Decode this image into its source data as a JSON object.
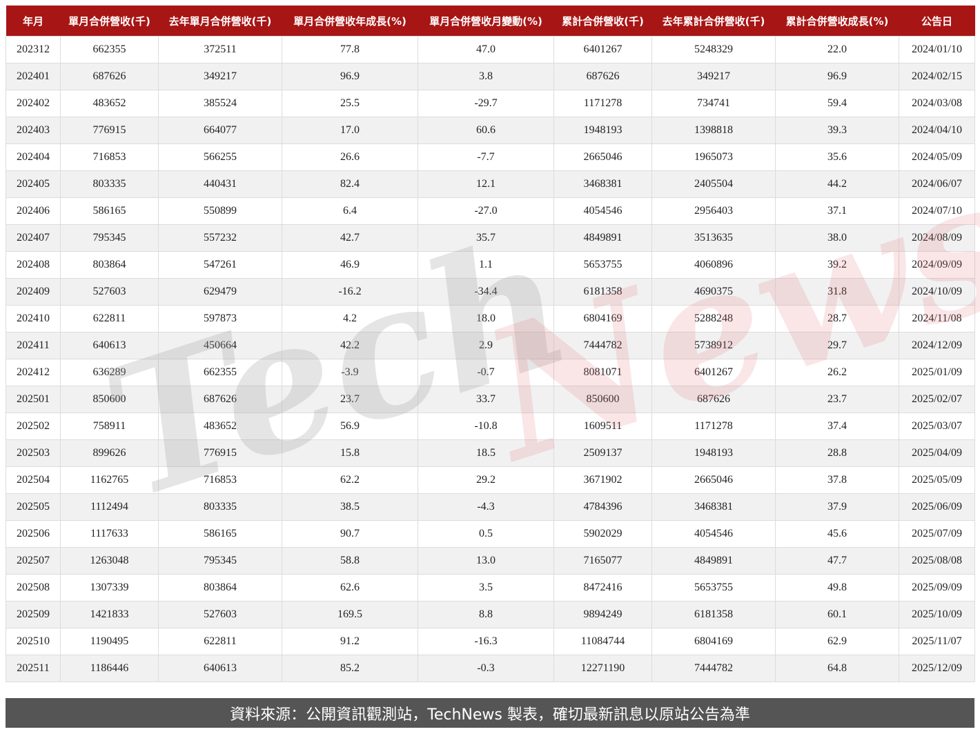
{
  "table": {
    "headers": [
      "年月",
      "單月合併營收(千)",
      "去年單月合併營收(千)",
      "單月合併營收年成長(%)",
      "單月合併營收月變動(%)",
      "累計合併營收(千)",
      "去年累計合併營收(千)",
      "累計合併營收成長(%)",
      "公告日"
    ],
    "rows": [
      [
        "202312",
        "662355",
        "372511",
        "77.8",
        "47.0",
        "6401267",
        "5248329",
        "22.0",
        "2024/01/10"
      ],
      [
        "202401",
        "687626",
        "349217",
        "96.9",
        "3.8",
        "687626",
        "349217",
        "96.9",
        "2024/02/15"
      ],
      [
        "202402",
        "483652",
        "385524",
        "25.5",
        "-29.7",
        "1171278",
        "734741",
        "59.4",
        "2024/03/08"
      ],
      [
        "202403",
        "776915",
        "664077",
        "17.0",
        "60.6",
        "1948193",
        "1398818",
        "39.3",
        "2024/04/10"
      ],
      [
        "202404",
        "716853",
        "566255",
        "26.6",
        "-7.7",
        "2665046",
        "1965073",
        "35.6",
        "2024/05/09"
      ],
      [
        "202405",
        "803335",
        "440431",
        "82.4",
        "12.1",
        "3468381",
        "2405504",
        "44.2",
        "2024/06/07"
      ],
      [
        "202406",
        "586165",
        "550899",
        "6.4",
        "-27.0",
        "4054546",
        "2956403",
        "37.1",
        "2024/07/10"
      ],
      [
        "202407",
        "795345",
        "557232",
        "42.7",
        "35.7",
        "4849891",
        "3513635",
        "38.0",
        "2024/08/09"
      ],
      [
        "202408",
        "803864",
        "547261",
        "46.9",
        "1.1",
        "5653755",
        "4060896",
        "39.2",
        "2024/09/09"
      ],
      [
        "202409",
        "527603",
        "629479",
        "-16.2",
        "-34.4",
        "6181358",
        "4690375",
        "31.8",
        "2024/10/09"
      ],
      [
        "202410",
        "622811",
        "597873",
        "4.2",
        "18.0",
        "6804169",
        "5288248",
        "28.7",
        "2024/11/08"
      ],
      [
        "202411",
        "640613",
        "450664",
        "42.2",
        "2.9",
        "7444782",
        "5738912",
        "29.7",
        "2024/12/09"
      ],
      [
        "202412",
        "636289",
        "662355",
        "-3.9",
        "-0.7",
        "8081071",
        "6401267",
        "26.2",
        "2025/01/09"
      ],
      [
        "202501",
        "850600",
        "687626",
        "23.7",
        "33.7",
        "850600",
        "687626",
        "23.7",
        "2025/02/07"
      ],
      [
        "202502",
        "758911",
        "483652",
        "56.9",
        "-10.8",
        "1609511",
        "1171278",
        "37.4",
        "2025/03/07"
      ],
      [
        "202503",
        "899626",
        "776915",
        "15.8",
        "18.5",
        "2509137",
        "1948193",
        "28.8",
        "2025/04/09"
      ],
      [
        "202504",
        "1162765",
        "716853",
        "62.2",
        "29.2",
        "3671902",
        "2665046",
        "37.8",
        "2025/05/09"
      ],
      [
        "202505",
        "1112494",
        "803335",
        "38.5",
        "-4.3",
        "4784396",
        "3468381",
        "37.9",
        "2025/06/09"
      ],
      [
        "202506",
        "1117633",
        "586165",
        "90.7",
        "0.5",
        "5902029",
        "4054546",
        "45.6",
        "2025/07/09"
      ],
      [
        "202507",
        "1263048",
        "795345",
        "58.8",
        "13.0",
        "7165077",
        "4849891",
        "47.7",
        "2025/08/08"
      ],
      [
        "202508",
        "1307339",
        "803864",
        "62.6",
        "3.5",
        "8472416",
        "5653755",
        "49.8",
        "2025/09/09"
      ],
      [
        "202509",
        "1421833",
        "527603",
        "169.5",
        "8.8",
        "9894249",
        "6181358",
        "60.1",
        "2025/10/09"
      ],
      [
        "202510",
        "1190495",
        "622811",
        "91.2",
        "-16.3",
        "11084744",
        "6804169",
        "62.9",
        "2025/11/07"
      ],
      [
        "202511",
        "1186446",
        "640613",
        "85.2",
        "-0.3",
        "12271190",
        "7444782",
        "64.8",
        "2025/12/09"
      ]
    ]
  },
  "watermark": {
    "part1": "Tech",
    "part2": "News"
  },
  "footer": {
    "text": "資料來源：公開資訊觀測站，TechNews 製表，確切最新訊息以原站公告為準"
  },
  "colors": {
    "header_bg": "#a81515",
    "footer_bg": "#555555",
    "alt_row": "#f1f1f1"
  }
}
